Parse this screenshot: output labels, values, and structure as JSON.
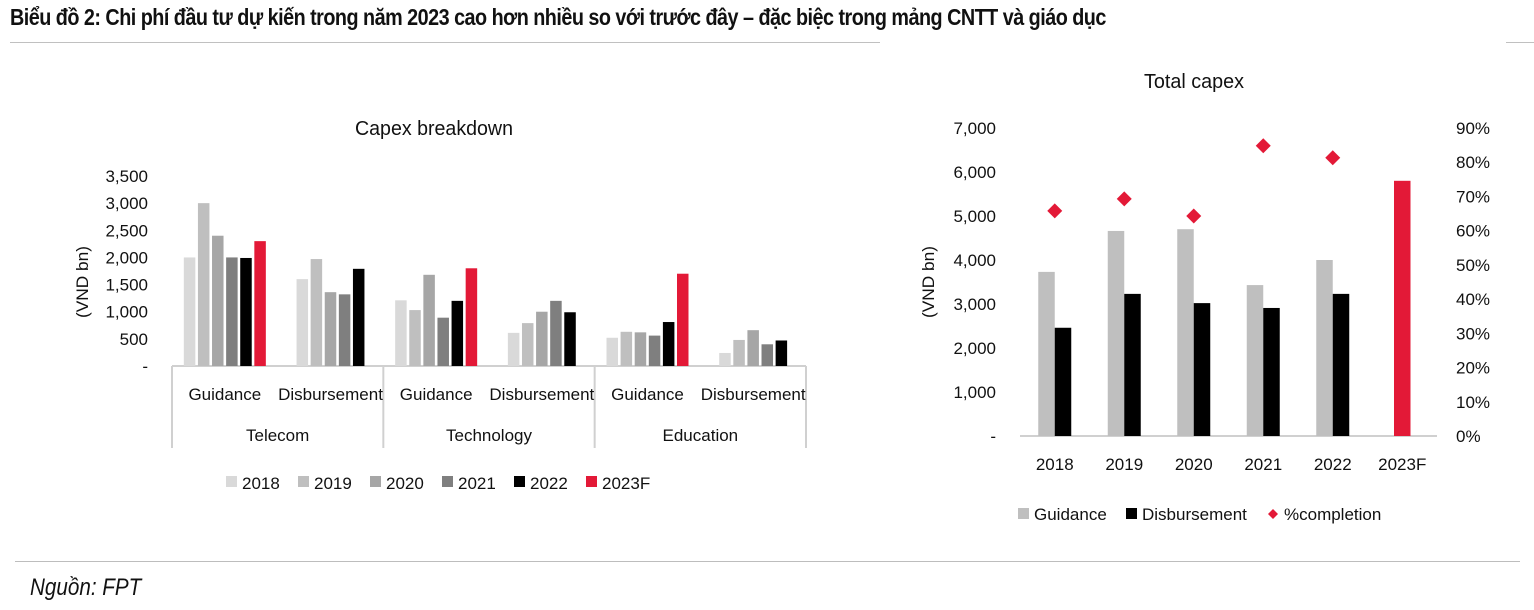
{
  "page": {
    "heading": "Biểu đồ 2: Chi phí đầu tư dự kiến trong năm 2023 cao hơn nhiều so với trước đây – đặc biệc trong mảng CNTT và giáo dục",
    "source": "Nguồn: FPT"
  },
  "colors": {
    "2018": "#d9d9d9",
    "2019": "#bfbfbf",
    "2020": "#a6a6a6",
    "2021": "#7f7f7f",
    "2022": "#000000",
    "2023F": "#e31937",
    "guidance": "#bfbfbf",
    "disbursement": "#000000",
    "completion": "#e31937",
    "axis": "#d0d0d0"
  },
  "chart_data": [
    {
      "type": "bar",
      "title": "Capex breakdown",
      "ylabel": "(VND bn)",
      "xlabel": "",
      "ylim": [
        0,
        3500
      ],
      "yticks": [
        "-",
        "500",
        "1,000",
        "1,500",
        "2,000",
        "2,500",
        "3,000",
        "3,500"
      ],
      "ytick_values": [
        0,
        500,
        1000,
        1500,
        2000,
        2500,
        3000,
        3500
      ],
      "groups": [
        {
          "name": "Telecom",
          "categories": [
            "Guidance",
            "Disbursement"
          ]
        },
        {
          "name": "Technology",
          "categories": [
            "Guidance",
            "Disbursement"
          ]
        },
        {
          "name": "Education",
          "categories": [
            "Guidance",
            "Disbursement"
          ]
        }
      ],
      "categories": [
        "Telecom Guidance",
        "Telecom Disbursement",
        "Technology Guidance",
        "Technology Disbursement",
        "Education Guidance",
        "Education Disbursement"
      ],
      "series": [
        {
          "name": "2018",
          "values": [
            2000,
            1600,
            1210,
            610,
            520,
            240
          ]
        },
        {
          "name": "2019",
          "values": [
            3000,
            1970,
            1030,
            790,
            630,
            480
          ]
        },
        {
          "name": "2020",
          "values": [
            2400,
            1360,
            1680,
            1000,
            620,
            660
          ]
        },
        {
          "name": "2021",
          "values": [
            2000,
            1320,
            890,
            1200,
            560,
            400
          ]
        },
        {
          "name": "2022",
          "values": [
            1990,
            1790,
            1200,
            990,
            810,
            470
          ]
        },
        {
          "name": "2023F",
          "values": [
            2300,
            null,
            1800,
            null,
            1700,
            null
          ]
        }
      ],
      "legend": [
        "2018",
        "2019",
        "2020",
        "2021",
        "2022",
        "2023F"
      ],
      "legend_position": "bottom",
      "grid": false
    },
    {
      "type": "bar",
      "title": "Total capex",
      "ylabel": "(VND bn)",
      "xlabel": "",
      "ylim": [
        0,
        7000
      ],
      "y2lim": [
        0,
        90
      ],
      "yticks": [
        "-",
        "1,000",
        "2,000",
        "3,000",
        "4,000",
        "5,000",
        "6,000",
        "7,000"
      ],
      "ytick_values": [
        0,
        1000,
        2000,
        3000,
        4000,
        5000,
        6000,
        7000
      ],
      "y2ticks": [
        "0%",
        "10%",
        "20%",
        "30%",
        "40%",
        "50%",
        "60%",
        "70%",
        "80%",
        "90%"
      ],
      "y2tick_values": [
        0,
        10,
        20,
        30,
        40,
        50,
        60,
        70,
        80,
        90
      ],
      "categories": [
        "2018",
        "2019",
        "2020",
        "2021",
        "2022",
        "2023F"
      ],
      "series": [
        {
          "name": "Guidance",
          "axis": "left",
          "values": [
            3730,
            4660,
            4700,
            3430,
            4000,
            5800
          ]
        },
        {
          "name": "Disbursement",
          "axis": "left",
          "values": [
            2460,
            3230,
            3020,
            2910,
            3230,
            null
          ]
        },
        {
          "name": "%completion",
          "axis": "right",
          "kind": "scatter",
          "values": [
            65.8,
            69.3,
            64.3,
            84.8,
            81.3,
            null
          ]
        }
      ],
      "legend": [
        "Guidance",
        "Disbursement",
        "%completion"
      ],
      "legend_position": "bottom",
      "grid": false
    }
  ]
}
